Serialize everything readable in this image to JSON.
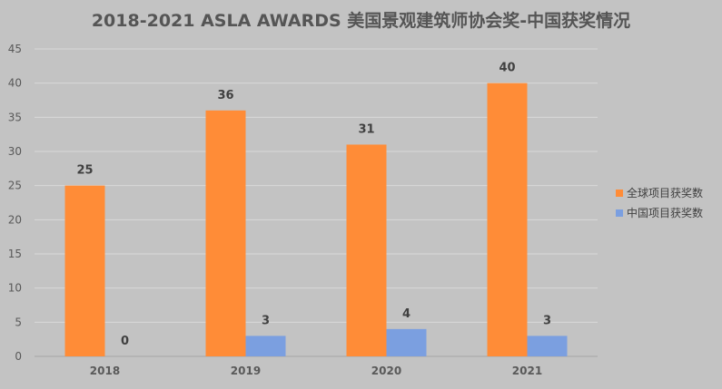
{
  "chart_data": {
    "type": "bar",
    "title": "2018-2021 ASLA AWARDS 美国景观建筑师协会奖-中国获奖情况",
    "xlabel": "",
    "ylabel": "",
    "categories": [
      "2018",
      "2019",
      "2020",
      "2021"
    ],
    "series": [
      {
        "name": "全球项目获奖数",
        "values": [
          25,
          36,
          31,
          40
        ],
        "color": "#ff8c37"
      },
      {
        "name": "中国项目获奖数",
        "values": [
          0,
          3,
          4,
          3
        ],
        "color": "#7b9fe0"
      }
    ],
    "ylim": [
      0,
      45
    ],
    "yticks": [
      0,
      5,
      10,
      15,
      20,
      25,
      30,
      35,
      40,
      45
    ],
    "grid": true,
    "legend": "right",
    "data_labels": true
  }
}
